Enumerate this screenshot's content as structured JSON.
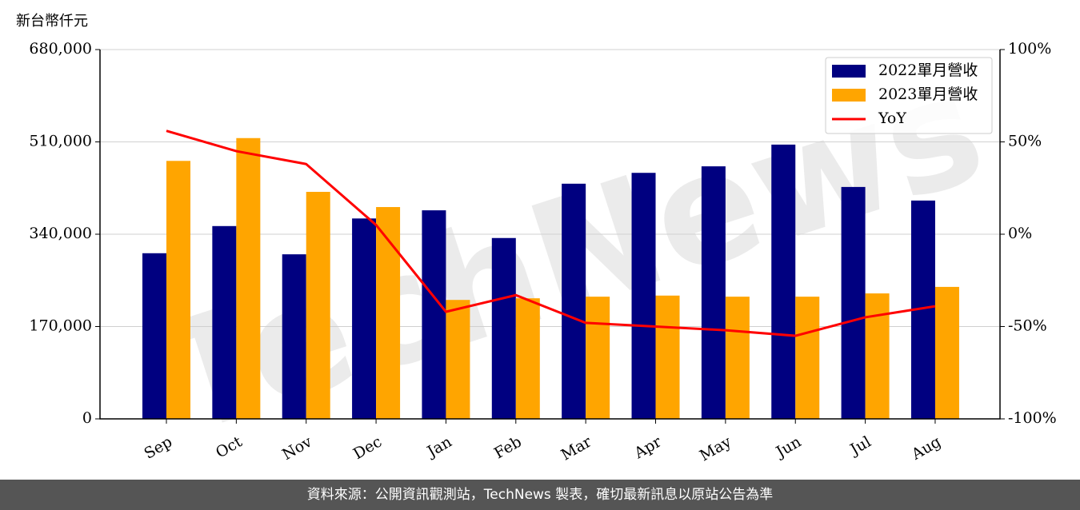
{
  "chart_data": {
    "type": "bar",
    "y_label": "新台幣仟元",
    "watermark": "TechNews",
    "footer": "資料來源：公開資訊觀測站，TechNews 製表，確切最新訊息以原站公告為準",
    "categories": [
      "Sep",
      "Oct",
      "Nov",
      "Dec",
      "Jan",
      "Feb",
      "Mar",
      "Apr",
      "May",
      "Jun",
      "Jul",
      "Aug"
    ],
    "series": [
      {
        "name": "2022單月營收",
        "color": "#000080",
        "type": "bar",
        "values": [
          305000,
          355000,
          303000,
          369000,
          384000,
          333000,
          433000,
          453000,
          465000,
          505000,
          427000,
          402000
        ]
      },
      {
        "name": "2023單月營收",
        "color": "#ffa500",
        "type": "bar",
        "values": [
          475000,
          517000,
          418000,
          390000,
          219000,
          222000,
          225000,
          227000,
          225000,
          225000,
          231000,
          243000
        ]
      },
      {
        "name": "YoY",
        "color": "#ff0000",
        "type": "line",
        "axis": "y2",
        "values": [
          56,
          45,
          38,
          5,
          -42,
          -33,
          -48,
          -50,
          -52,
          -55,
          -45,
          -39
        ]
      }
    ],
    "ylim": [
      0,
      680000
    ],
    "yticks": [
      0,
      {
        "value": 170000,
        "label": "170,000"
      },
      {
        "value": 340000,
        "label": "340,000"
      },
      {
        "value": 510000,
        "label": "510,000"
      },
      {
        "value": 680000,
        "label": "680,000"
      }
    ],
    "y2lim": [
      -100,
      100
    ],
    "y2ticks": [
      {
        "value": -100,
        "label": "-100%"
      },
      {
        "value": -50,
        "label": "-50%"
      },
      {
        "value": 0,
        "label": "0%"
      },
      {
        "value": 50,
        "label": "50%"
      },
      {
        "value": 100,
        "label": "100%"
      }
    ],
    "grid": true,
    "legend": "upper right"
  }
}
